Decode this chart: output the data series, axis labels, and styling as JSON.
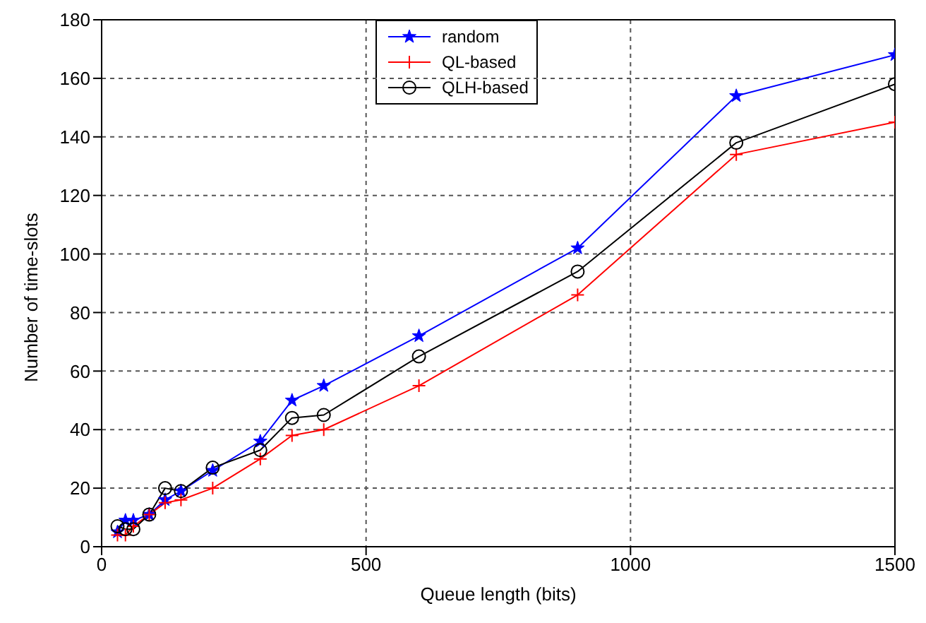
{
  "chart_data": {
    "type": "line",
    "xlabel": "Queue length (bits)",
    "ylabel": "Number of time-slots",
    "x": [
      30,
      45,
      60,
      90,
      120,
      150,
      210,
      300,
      360,
      420,
      600,
      900,
      1200,
      1500
    ],
    "xlim": [
      0,
      1500
    ],
    "xticks": [
      0,
      500,
      1000,
      1500
    ],
    "ylim": [
      0,
      180
    ],
    "yticks": [
      0,
      20,
      40,
      60,
      80,
      100,
      120,
      140,
      160,
      180
    ],
    "grid": true,
    "legend": "top",
    "line_style": "solid",
    "series": [
      {
        "name": "random",
        "color": "#0000ff",
        "marker": "star",
        "values": [
          5,
          9,
          9,
          11,
          16,
          19,
          26,
          36,
          50,
          55,
          72,
          102,
          154,
          168
        ]
      },
      {
        "name": "QL-based",
        "color": "#ff0000",
        "marker": "cross",
        "values": [
          4,
          4,
          7,
          11,
          15,
          16,
          20,
          30,
          38,
          40,
          55,
          86,
          134,
          145
        ]
      },
      {
        "name": "QLH-based",
        "color": "#000000",
        "marker": "circle",
        "values": [
          7,
          6,
          6,
          11,
          20,
          19,
          27,
          33,
          44,
          45,
          65,
          94,
          138,
          158
        ]
      }
    ]
  }
}
